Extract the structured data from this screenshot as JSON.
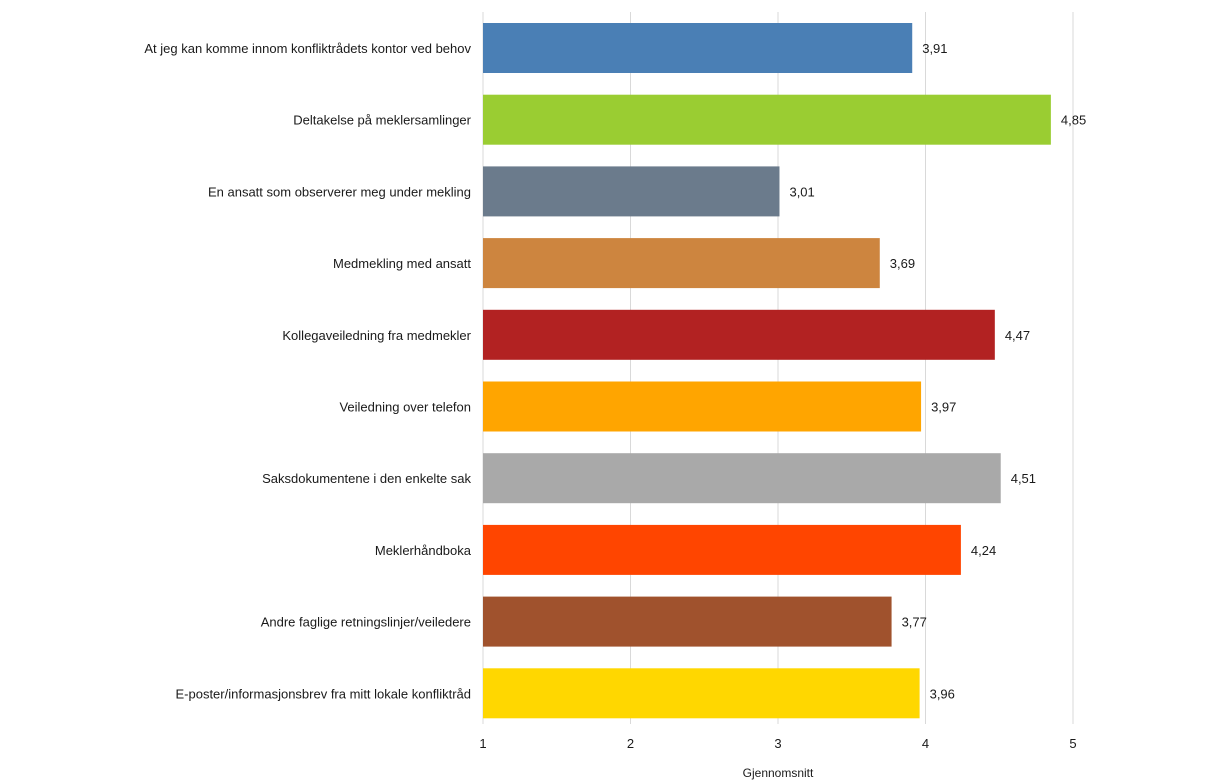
{
  "chart_data": {
    "type": "bar",
    "orientation": "horizontal",
    "categories": [
      "At jeg kan komme innom konfliktrådets kontor ved behov",
      "Deltakelse på meklersamlinger",
      "En ansatt som observerer meg under mekling",
      "Medmekling med ansatt",
      "Kollegaveiledning fra medmekler",
      "Veiledning over telefon",
      "Saksdokumentene i den enkelte sak",
      "Meklerhåndboka",
      "Andre faglige retningslinjer/veiledere",
      "E-poster/informasjonsbrev fra mitt lokale konfliktråd"
    ],
    "values": [
      3.91,
      4.85,
      3.01,
      3.69,
      4.47,
      3.97,
      4.51,
      4.24,
      3.77,
      3.96
    ],
    "value_labels": [
      "3,91",
      "4,85",
      "3,01",
      "3,69",
      "4,47",
      "3,97",
      "4,51",
      "4,24",
      "3,77",
      "3,96"
    ],
    "colors": [
      "#4a7fb5",
      "#9acd32",
      "#6b7b8c",
      "#cd853f",
      "#b22222",
      "#ffa500",
      "#a9a9a9",
      "#ff4500",
      "#a0522d",
      "#ffd700"
    ],
    "xlabel": "Gjennomsnitt",
    "ylabel": "",
    "xlim": [
      1,
      5
    ],
    "x_ticks": [
      1,
      2,
      3,
      4,
      5
    ],
    "x_tick_labels": [
      "1",
      "2",
      "3",
      "4",
      "5"
    ],
    "grid": "vertical",
    "legend": "none"
  }
}
